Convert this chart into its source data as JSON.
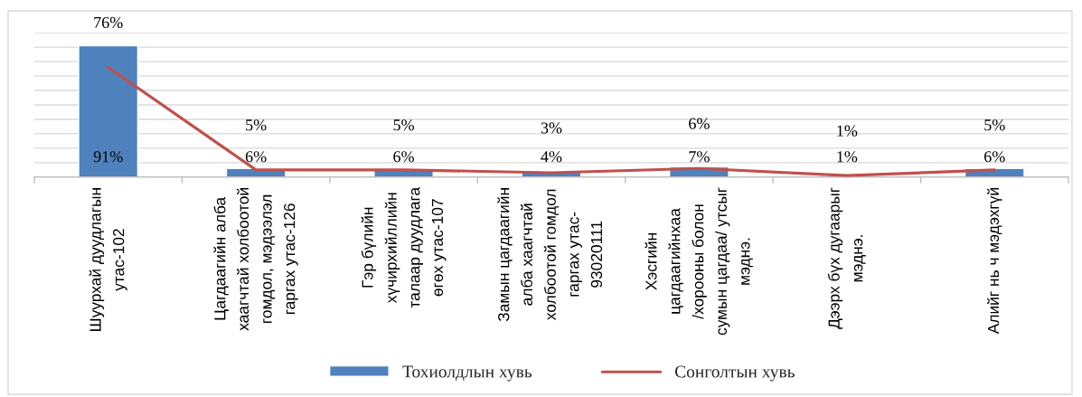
{
  "chart_data": {
    "type": "bar",
    "categories": [
      "Шуурхай дуудлагын\nутас-102",
      "Цагдаагийн алба\nхаагчтай холбоотой\nгомдол, мэдээлэл\nгаргах утас-126",
      "Гэр бүлийн\nхүчирхийллийн\nталаар дуудлага\nөгөх утас-107",
      "Замын цагдаагийн\nалба хаагчтай\nхолбоотой гомдол\nгаргах утас-\n93020111",
      "Хэсгийн\nцагдаагийнхаа\n/хорооны болон\nсумын цагдаа/ утсыг\nмэднэ.",
      "Дээрх бүх дугаарыг\nмэднэ.",
      "Алийг нь ч мэдэхгүй"
    ],
    "series": [
      {
        "name": "Тохиолдлын хувь",
        "color": "#4f81bd",
        "values": [
          91,
          6,
          6,
          4,
          7,
          null,
          6
        ],
        "value_labels": [
          "91%",
          "6%",
          "6%",
          "4%",
          "7%",
          "1%",
          "6%"
        ]
      },
      {
        "name": "Сонголтын хувь",
        "type": "line",
        "color": "#c0504d",
        "values": [
          76,
          5,
          5,
          3,
          6,
          1,
          5
        ],
        "value_labels": [
          "76%",
          "5%",
          "5%",
          "3%",
          "6%",
          "1%",
          "5%"
        ]
      }
    ],
    "ylim": [
      0,
      100
    ],
    "yticks": [
      {
        "value": 0,
        "label": null
      },
      {
        "value": 10,
        "label": null
      },
      {
        "value": 20,
        "label": null
      },
      {
        "value": 30,
        "label": null
      },
      {
        "value": 40,
        "label": null
      },
      {
        "value": 50,
        "label": null
      },
      {
        "value": 60,
        "label": null
      },
      {
        "value": 70,
        "label": null
      },
      {
        "value": 80,
        "label": null
      },
      {
        "value": 90,
        "label": null
      },
      {
        "value": 100,
        "label": null
      }
    ],
    "tick_labels": "x",
    "grid": "y",
    "legend": "bottom",
    "line_style": "solid"
  }
}
